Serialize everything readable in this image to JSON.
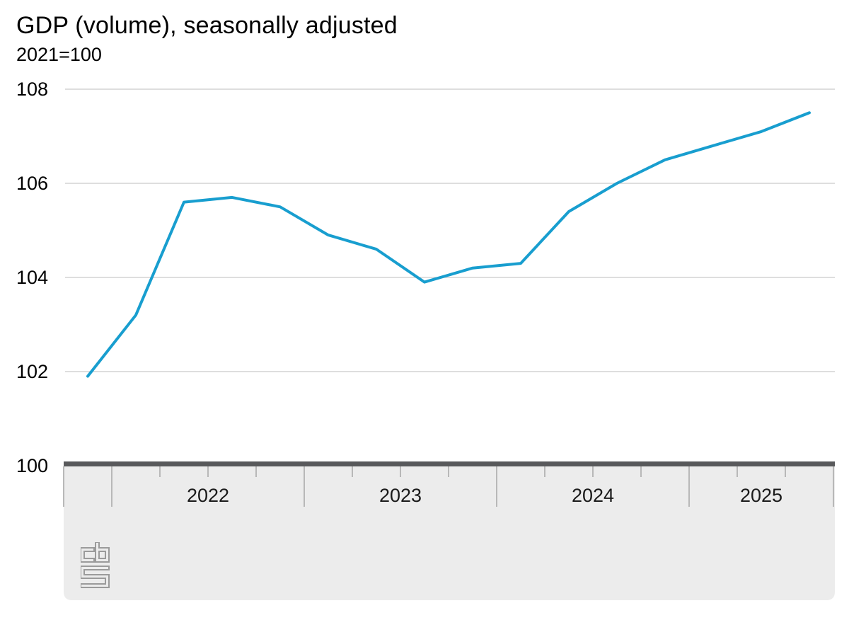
{
  "title": "GDP (volume), seasonally adjusted",
  "subtitle": "2021=100",
  "y_axis": {
    "labels": [
      "108",
      "106",
      "104",
      "102",
      "100"
    ]
  },
  "x_axis": {
    "years": [
      "2022",
      "2023",
      "2024",
      "2025"
    ]
  },
  "logo": {
    "name": "cbs-logo"
  },
  "colors": {
    "line": "#189ECF",
    "gridline": "#C9C9C9",
    "axis_bar": "#58595B",
    "axis_panel": "#ECECEC",
    "tick": "#B8B8B8",
    "logo_gray": "#9B9B9B"
  },
  "chart_data": {
    "type": "line",
    "title": "GDP (volume), seasonally adjusted",
    "subtitle": "2021=100",
    "series_name": "GDP volume index, seasonally adjusted",
    "x": [
      "2021 Q4",
      "2022 Q1",
      "2022 Q2",
      "2022 Q3",
      "2022 Q4",
      "2023 Q1",
      "2023 Q2",
      "2023 Q3",
      "2023 Q4",
      "2024 Q1",
      "2024 Q2",
      "2024 Q3",
      "2024 Q4",
      "2025 Q1",
      "2025 Q2",
      "2025 Q3"
    ],
    "values": [
      101.9,
      103.2,
      105.6,
      105.7,
      105.5,
      104.9,
      104.6,
      103.9,
      104.2,
      104.3,
      105.4,
      106.0,
      106.5,
      106.8,
      107.1,
      107.5
    ],
    "y_ticks": [
      100,
      102,
      104,
      106,
      108
    ],
    "ylim": [
      100,
      108.5
    ],
    "x_year_labels": [
      "2022",
      "2023",
      "2024",
      "2025"
    ],
    "grid": "horizontal",
    "legend": "none",
    "line_color": "#189ECF"
  }
}
